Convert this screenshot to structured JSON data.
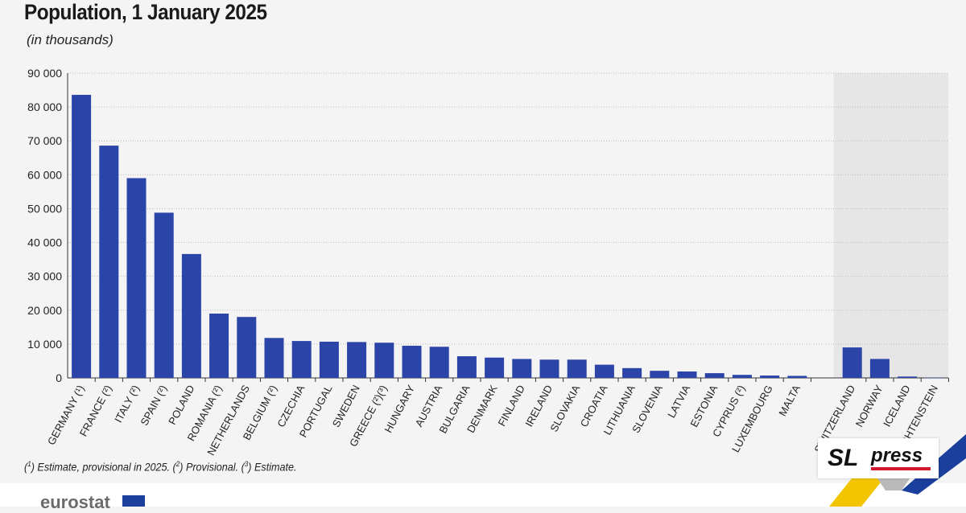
{
  "header": {
    "title": "Population, 1 January 2025",
    "subtitle": "(in thousands)"
  },
  "footnote": {
    "m1": "1",
    "t1": " Estimate, provisional in 2025. (",
    "m2": "2",
    "t2": " Provisional. (",
    "m3": "3",
    "t3": " Estimate."
  },
  "branding": {
    "eurostat": "eurostat",
    "sl": "SL",
    "press": "press"
  },
  "colors": {
    "bar": "#2a44a8",
    "grid": "#bdbdbd",
    "shade": "#e6e6e6"
  },
  "chart_data": {
    "type": "bar",
    "ylim": [
      0,
      90000
    ],
    "yticks": [
      0,
      10000,
      20000,
      30000,
      40000,
      50000,
      60000,
      70000,
      80000,
      90000
    ],
    "ytick_labels": [
      "0",
      "10 000",
      "20 000",
      "30 000",
      "40 000",
      "50 000",
      "60 000",
      "70 000",
      "80 000",
      "90 000"
    ],
    "grid": "horizontal dotted",
    "groups": [
      {
        "name": "",
        "shaded": false,
        "categories": [
          "GERMANY (¹)",
          "FRANCE (²)",
          "ITALY (²)",
          "SPAIN (²)",
          "POLAND",
          "ROMANIA (²)",
          "NETHERLANDS",
          "BELGIUM (²)",
          "CZECHIA",
          "PORTUGAL",
          "SWEDEN",
          "GREECE (²)(³)",
          "HUNGARY",
          "AUSTRIA",
          "BULGARIA",
          "DENMARK",
          "FINLAND",
          "IRELAND",
          "SLOVAKIA",
          "CROATIA",
          "LITHUANIA",
          "SLOVENIA",
          "LATVIA",
          "ESTONIA",
          "CYPRUS (²)",
          "LUXEMBOURG",
          "MALTA"
        ],
        "values": [
          83600,
          68600,
          59000,
          48800,
          36600,
          19000,
          18000,
          11800,
          10900,
          10700,
          10600,
          10400,
          9500,
          9200,
          6400,
          6000,
          5600,
          5400,
          5400,
          3900,
          2900,
          2100,
          1900,
          1400,
          900,
          700,
          600
        ]
      },
      {
        "name": "",
        "shaded": true,
        "categories": [
          "SWITZERLAND",
          "NORWAY",
          "ICELAND",
          "LIECHTENSTEIN"
        ],
        "values": [
          9000,
          5600,
          400,
          40
        ]
      }
    ]
  }
}
